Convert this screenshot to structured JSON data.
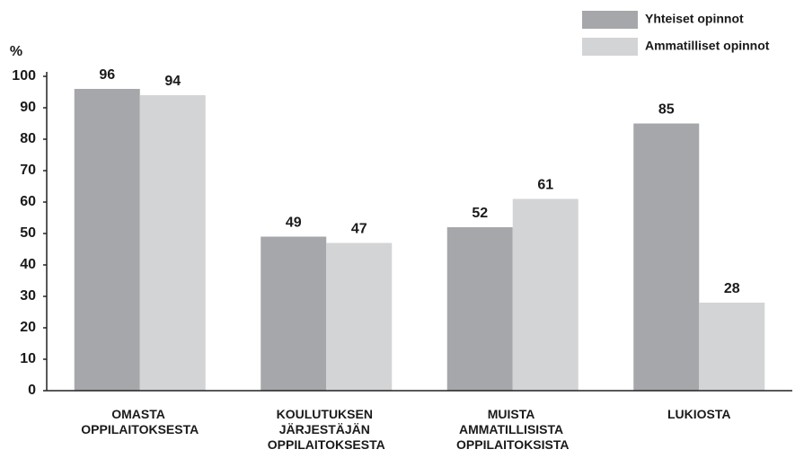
{
  "chart_data": {
    "type": "bar",
    "ylabel": "%",
    "categories": [
      "OMASTA OPPILAITOKSESTA",
      "KOULUTUKSEN JÄRJESTÄJÄN OPPILAITOKSESTA",
      "MUISTA AMMATILLISISTA OPPILAITOKSISTA",
      "LUKIOSTA"
    ],
    "series": [
      {
        "name": "Yhteiset opinnot",
        "color": "#a6a7aa",
        "values": [
          96,
          49,
          52,
          85
        ]
      },
      {
        "name": "Ammatilliset opinnot",
        "color": "#d3d4d6",
        "values": [
          94,
          47,
          61,
          28
        ]
      }
    ],
    "ylim": [
      0,
      100
    ],
    "yticks": [
      0,
      10,
      20,
      30,
      40,
      50,
      60,
      70,
      80,
      90,
      100
    ],
    "grid": false,
    "legend": "top-right"
  }
}
